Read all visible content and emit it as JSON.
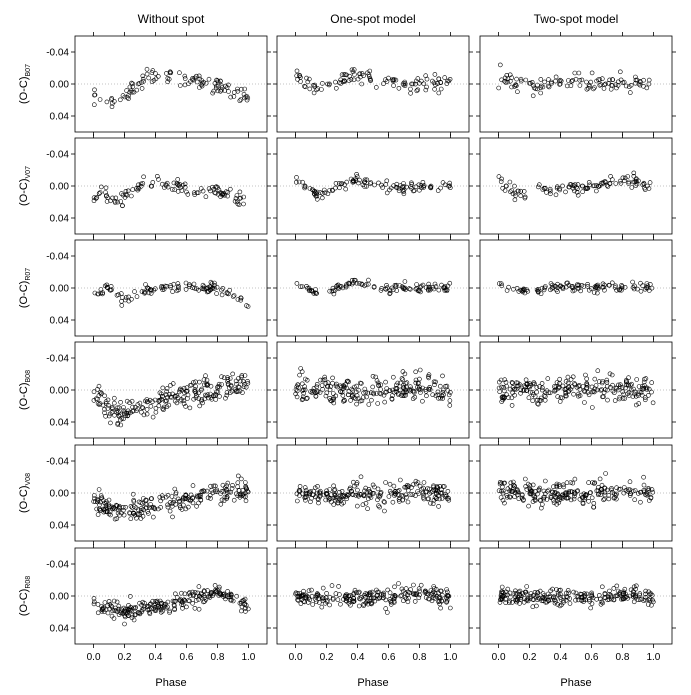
{
  "chart_data": {
    "type": "scatter",
    "columns": [
      {
        "title": "Without spot"
      },
      {
        "title": "One-spot model"
      },
      {
        "title": "Two-spot model"
      }
    ],
    "rows": [
      {
        "ylabel_main": "(O-C)",
        "ylabel_sub": "B07",
        "points": 110
      },
      {
        "ylabel_main": "(O-C)",
        "ylabel_sub": "V07",
        "points": 110
      },
      {
        "ylabel_main": "(O-C)",
        "ylabel_sub": "R07",
        "points": 110
      },
      {
        "ylabel_main": "(O-C)",
        "ylabel_sub": "B08",
        "points": 230
      },
      {
        "ylabel_main": "(O-C)",
        "ylabel_sub": "V08",
        "points": 230
      },
      {
        "ylabel_main": "(O-C)",
        "ylabel_sub": "R08",
        "points": 230
      }
    ],
    "xlabel": "Phase",
    "xlim": [
      -0.12,
      1.12
    ],
    "ylim": [
      0.06,
      -0.06
    ],
    "xticks": [
      0.0,
      0.2,
      0.4,
      0.6,
      0.8,
      1.0
    ],
    "xtick_labels": [
      "0.0",
      "0.2",
      "0.4",
      "0.6",
      "0.8",
      "1.0"
    ],
    "yticks": [
      -0.04,
      0.0,
      0.04
    ],
    "ytick_labels": [
      "-0.04",
      "0.00",
      "0.04"
    ],
    "zero_line": true,
    "marker": "open-circle",
    "trends": {
      "without_spot": [
        [
          [
            0.0,
            0.015
          ],
          [
            0.15,
            0.025
          ],
          [
            0.25,
            0.005
          ],
          [
            0.4,
            -0.013
          ],
          [
            0.55,
            -0.008
          ],
          [
            0.7,
            0.0
          ],
          [
            0.85,
            0.005
          ],
          [
            1.0,
            0.02
          ]
        ],
        [
          [
            0.0,
            0.015
          ],
          [
            0.05,
            0.005
          ],
          [
            0.15,
            0.02
          ],
          [
            0.3,
            0.0
          ],
          [
            0.4,
            -0.008
          ],
          [
            0.6,
            0.002
          ],
          [
            0.8,
            0.006
          ],
          [
            1.0,
            0.022
          ]
        ],
        [
          [
            0.0,
            0.01
          ],
          [
            0.1,
            0.0
          ],
          [
            0.2,
            0.015
          ],
          [
            0.35,
            0.0
          ],
          [
            0.6,
            0.0
          ],
          [
            0.8,
            0.0
          ],
          [
            0.9,
            0.008
          ],
          [
            1.0,
            0.02
          ]
        ],
        [
          [
            0.0,
            0.005
          ],
          [
            0.15,
            0.03
          ],
          [
            0.3,
            0.02
          ],
          [
            0.5,
            0.008
          ],
          [
            0.7,
            0.0
          ],
          [
            0.85,
            -0.005
          ],
          [
            1.0,
            -0.01
          ]
        ],
        [
          [
            0.0,
            0.012
          ],
          [
            0.2,
            0.022
          ],
          [
            0.4,
            0.015
          ],
          [
            0.6,
            0.008
          ],
          [
            0.8,
            -0.002
          ],
          [
            1.0,
            -0.005
          ]
        ],
        [
          [
            0.0,
            0.01
          ],
          [
            0.2,
            0.02
          ],
          [
            0.4,
            0.015
          ],
          [
            0.6,
            0.005
          ],
          [
            0.8,
            -0.005
          ],
          [
            1.0,
            0.015
          ]
        ]
      ],
      "one_spot": [
        [
          [
            0.0,
            -0.01
          ],
          [
            0.15,
            0.005
          ],
          [
            0.3,
            -0.005
          ],
          [
            0.4,
            -0.012
          ],
          [
            0.6,
            0.0
          ],
          [
            0.8,
            0.002
          ],
          [
            1.0,
            -0.005
          ]
        ],
        [
          [
            0.0,
            -0.01
          ],
          [
            0.15,
            0.012
          ],
          [
            0.3,
            -0.003
          ],
          [
            0.4,
            -0.008
          ],
          [
            0.6,
            0.005
          ],
          [
            0.8,
            0.0
          ],
          [
            1.0,
            0.0
          ]
        ],
        [
          [
            0.0,
            -0.008
          ],
          [
            0.1,
            0.005
          ],
          [
            0.2,
            0.008
          ],
          [
            0.35,
            -0.008
          ],
          [
            0.6,
            0.0
          ],
          [
            0.8,
            0.0
          ],
          [
            1.0,
            0.0
          ]
        ],
        [
          [
            0.0,
            0.0
          ],
          [
            0.3,
            0.0
          ],
          [
            0.6,
            0.0
          ],
          [
            0.8,
            -0.004
          ],
          [
            1.0,
            0.002
          ]
        ],
        [
          [
            0.0,
            0.0
          ],
          [
            0.3,
            0.002
          ],
          [
            0.6,
            0.0
          ],
          [
            0.8,
            -0.003
          ],
          [
            1.0,
            0.0
          ]
        ],
        [
          [
            0.0,
            0.0
          ],
          [
            0.3,
            0.002
          ],
          [
            0.6,
            0.002
          ],
          [
            0.8,
            -0.004
          ],
          [
            1.0,
            0.004
          ]
        ]
      ],
      "two_spot": [
        [
          [
            0.0,
            -0.008
          ],
          [
            0.2,
            0.003
          ],
          [
            0.4,
            -0.004
          ],
          [
            0.6,
            0.0
          ],
          [
            0.8,
            -0.004
          ],
          [
            1.0,
            0.002
          ]
        ],
        [
          [
            0.0,
            -0.005
          ],
          [
            0.15,
            0.01
          ],
          [
            0.3,
            0.002
          ],
          [
            0.6,
            0.002
          ],
          [
            0.85,
            -0.008
          ],
          [
            1.0,
            0.003
          ]
        ],
        [
          [
            0.0,
            -0.003
          ],
          [
            0.2,
            0.004
          ],
          [
            0.4,
            -0.002
          ],
          [
            0.7,
            0.0
          ],
          [
            1.0,
            0.0
          ]
        ],
        [
          [
            0.0,
            0.0
          ],
          [
            0.3,
            0.002
          ],
          [
            0.6,
            0.0
          ],
          [
            0.85,
            -0.003
          ],
          [
            1.0,
            0.0
          ]
        ],
        [
          [
            0.0,
            0.0
          ],
          [
            0.3,
            0.002
          ],
          [
            0.6,
            0.0
          ],
          [
            0.85,
            -0.002
          ],
          [
            1.0,
            0.0
          ]
        ],
        [
          [
            0.0,
            0.0
          ],
          [
            0.3,
            0.002
          ],
          [
            0.6,
            0.002
          ],
          [
            0.85,
            -0.003
          ],
          [
            1.0,
            0.003
          ]
        ]
      ]
    },
    "scatter_std": [
      0.005,
      0.004,
      0.003,
      0.0085,
      0.0075,
      0.0055
    ]
  }
}
